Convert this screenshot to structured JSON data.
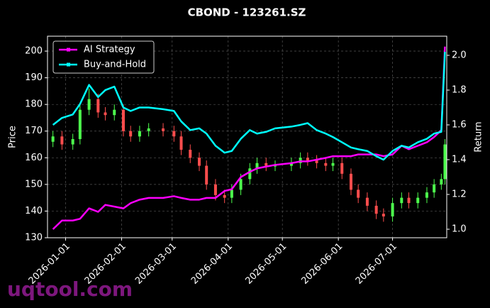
{
  "chart_data": {
    "type": "candlestick",
    "title": "CBOND - 123261.SZ",
    "y_label": "Price",
    "y2_label": "Return",
    "watermark": "uqtool.com",
    "x": [
      "2025-12-25",
      "2025-12-30",
      "2026-01-05",
      "2026-01-09",
      "2026-01-14",
      "2026-01-19",
      "2026-01-23",
      "2026-01-28",
      "2026-02-02",
      "2026-02-06",
      "2026-02-11",
      "2026-02-16",
      "2026-02-24",
      "2026-03-02",
      "2026-03-06",
      "2026-03-11",
      "2026-03-16",
      "2026-03-20",
      "2026-03-25",
      "2026-03-30",
      "2026-04-03",
      "2026-04-08",
      "2026-04-13",
      "2026-04-17",
      "2026-04-22",
      "2026-04-27",
      "2026-05-06",
      "2026-05-11",
      "2026-05-15",
      "2026-05-20",
      "2026-05-25",
      "2026-05-29",
      "2026-06-03",
      "2026-06-08",
      "2026-06-12",
      "2026-06-17",
      "2026-06-22",
      "2026-06-26",
      "2026-07-01",
      "2026-07-06",
      "2026-07-10",
      "2026-07-15",
      "2026-07-20",
      "2026-07-24",
      "2026-07-28",
      "2026-07-30"
    ],
    "open": [
      166,
      168,
      165,
      167,
      178,
      182,
      177,
      176,
      178,
      170,
      168,
      170,
      171,
      170,
      168,
      163,
      160,
      157,
      150,
      146,
      145,
      148,
      152,
      156,
      158,
      157,
      157,
      158,
      160,
      159,
      158,
      157,
      158,
      154,
      148,
      145,
      142,
      139,
      138,
      143,
      145,
      143,
      145,
      147,
      150,
      152
    ],
    "high": [
      170,
      170,
      169,
      180,
      186,
      184,
      179,
      180,
      180,
      172,
      172,
      173,
      173,
      172,
      170,
      165,
      162,
      159,
      152,
      148,
      150,
      154,
      158,
      160,
      160,
      159,
      160,
      162,
      162,
      161,
      160,
      160,
      160,
      156,
      150,
      147,
      144,
      141,
      145,
      147,
      147,
      147,
      149,
      152,
      154,
      167
    ],
    "low": [
      164,
      163,
      163,
      165,
      176,
      175,
      174,
      174,
      168,
      166,
      166,
      168,
      168,
      166,
      161,
      158,
      155,
      148,
      144,
      143,
      143,
      146,
      150,
      154,
      155,
      155,
      155,
      156,
      157,
      156,
      155,
      155,
      152,
      146,
      143,
      140,
      137,
      136,
      136,
      141,
      141,
      141,
      143,
      145,
      148,
      150
    ],
    "close": [
      168,
      165,
      167,
      178,
      182,
      177,
      176,
      178,
      170,
      168,
      170,
      171,
      170,
      168,
      163,
      160,
      157,
      150,
      146,
      145,
      148,
      152,
      156,
      158,
      157,
      157,
      158,
      160,
      159,
      158,
      157,
      158,
      154,
      148,
      145,
      142,
      139,
      138,
      143,
      145,
      143,
      145,
      147,
      150,
      152,
      165
    ],
    "up_color": "#4dff4d",
    "down_color": "#ff4d4d",
    "series": [
      {
        "name": "AI Strategy",
        "color": "#ff00ff",
        "axis": "y2",
        "values": [
          1.0,
          1.05,
          1.05,
          1.06,
          1.12,
          1.1,
          1.14,
          1.13,
          1.12,
          1.15,
          1.17,
          1.18,
          1.18,
          1.19,
          1.18,
          1.17,
          1.17,
          1.18,
          1.18,
          1.22,
          1.23,
          1.3,
          1.33,
          1.35,
          1.36,
          1.37,
          1.38,
          1.39,
          1.39,
          1.4,
          1.41,
          1.42,
          1.42,
          1.42,
          1.43,
          1.43,
          1.43,
          1.42,
          1.43,
          1.48,
          1.46,
          1.48,
          1.5,
          1.53,
          1.57,
          2.05
        ]
      },
      {
        "name": "Buy-and-Hold",
        "color": "#00ffff",
        "axis": "y2",
        "values": [
          1.6,
          1.64,
          1.66,
          1.72,
          1.83,
          1.76,
          1.8,
          1.82,
          1.7,
          1.68,
          1.7,
          1.7,
          1.69,
          1.68,
          1.62,
          1.57,
          1.58,
          1.55,
          1.48,
          1.44,
          1.45,
          1.52,
          1.57,
          1.55,
          1.56,
          1.58,
          1.59,
          1.6,
          1.61,
          1.57,
          1.55,
          1.53,
          1.5,
          1.47,
          1.46,
          1.45,
          1.42,
          1.4,
          1.45,
          1.48,
          1.47,
          1.5,
          1.52,
          1.55,
          1.56,
          2.02
        ]
      }
    ],
    "xlim": [
      "2025-12-22",
      "2026-07-31"
    ],
    "xticks": [
      "2026-01-01",
      "2026-02-01",
      "2026-03-01",
      "2026-04-01",
      "2026-05-01",
      "2026-06-01",
      "2026-07-01"
    ],
    "ylim": [
      130,
      205.6
    ],
    "yticks": [
      130,
      140,
      150,
      160,
      170,
      180,
      190,
      200
    ],
    "y2lim": [
      0.951,
      2.11
    ],
    "y2ticks": [
      {
        "value": 1.0,
        "label": "1.0"
      },
      {
        "value": 1.2,
        "label": "1.2"
      },
      {
        "value": 1.4,
        "label": "1.4"
      },
      {
        "value": 1.6,
        "label": "1.6"
      },
      {
        "value": 1.8,
        "label": "1.8"
      },
      {
        "value": 2.0,
        "label": "2.0"
      }
    ],
    "grid": true,
    "legend": "upper left"
  }
}
